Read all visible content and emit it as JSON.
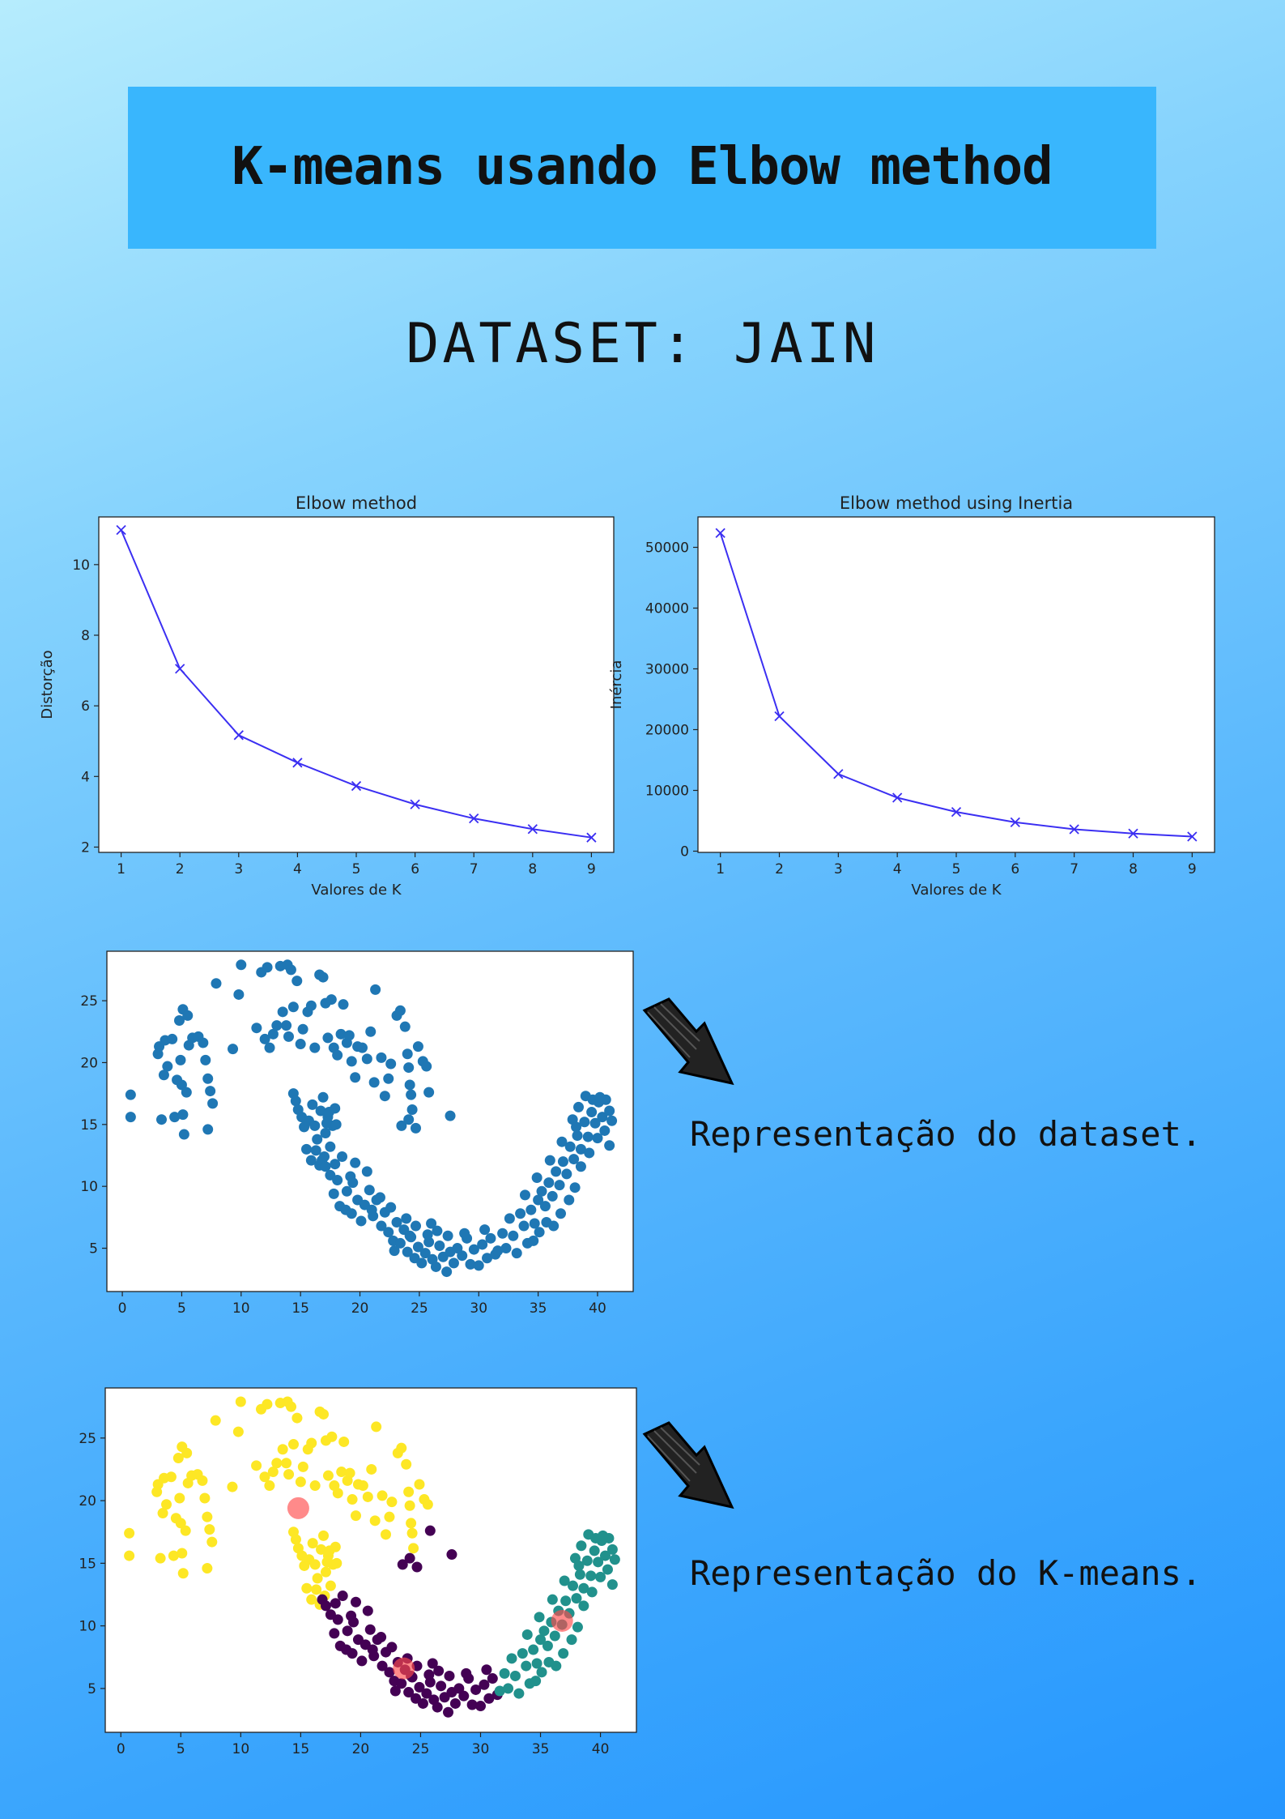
{
  "header": {
    "title": "K-means usando Elbow method",
    "subtitle": "DATASET: JAIN"
  },
  "captions": {
    "dataset": "Representação do dataset.",
    "kmeans": "Representação do K-means."
  },
  "colors": {
    "line": "#3b2ff2",
    "dataset_points": "#1f77b4",
    "cluster_0": "#440154",
    "cluster_1": "#21918c",
    "cluster_2": "#fde725",
    "centroid": "#ff4b4b"
  },
  "chart_data": [
    {
      "type": "line",
      "title": "Elbow method",
      "xlabel": "Valores de K",
      "ylabel": "Distorção",
      "x": [
        1,
        2,
        3,
        4,
        5,
        6,
        7,
        8,
        9
      ],
      "values": [
        10.98,
        7.05,
        5.17,
        4.39,
        3.73,
        3.21,
        2.81,
        2.51,
        2.27
      ],
      "xlim": [
        0.62,
        9.38
      ],
      "ylim": [
        1.85,
        11.35
      ],
      "xticks": [
        1,
        2,
        3,
        4,
        5,
        6,
        7,
        8,
        9
      ],
      "yticks": [
        2,
        4,
        6,
        8,
        10
      ],
      "marker": "x",
      "grid": false
    },
    {
      "type": "line",
      "title": "Elbow method using Inertia",
      "xlabel": "Valores de K",
      "ylabel": "Inércia",
      "x": [
        1,
        2,
        3,
        4,
        5,
        6,
        7,
        8,
        9
      ],
      "values": [
        52350,
        22200,
        12700,
        8800,
        6450,
        4750,
        3600,
        2900,
        2400
      ],
      "xlim": [
        0.62,
        9.38
      ],
      "ylim": [
        -200,
        55000
      ],
      "xticks": [
        1,
        2,
        3,
        4,
        5,
        6,
        7,
        8,
        9
      ],
      "yticks": [
        0,
        10000,
        20000,
        30000,
        40000,
        50000
      ],
      "marker": "x",
      "grid": false
    },
    {
      "type": "scatter",
      "title": "",
      "xlabel": "",
      "ylabel": "",
      "xlim": [
        -1.3,
        43
      ],
      "ylim": [
        1.5,
        29
      ],
      "xticks": [
        0,
        5,
        10,
        15,
        20,
        25,
        30,
        35,
        40
      ],
      "yticks": [
        5,
        10,
        15,
        20,
        25
      ],
      "point_groups": [
        {
          "cluster": 2,
          "points": [
            [
              0.7,
              17.4
            ],
            [
              0.7,
              15.6
            ],
            [
              3.1,
              21.3
            ],
            [
              3.6,
              21.8
            ],
            [
              3.0,
              20.7
            ],
            [
              4.2,
              21.9
            ],
            [
              3.8,
              19.7
            ],
            [
              4.9,
              20.2
            ],
            [
              3.5,
              19.0
            ],
            [
              4.6,
              18.6
            ],
            [
              5.0,
              18.2
            ],
            [
              5.4,
              17.6
            ],
            [
              4.4,
              15.6
            ],
            [
              5.1,
              15.8
            ],
            [
              3.3,
              15.4
            ],
            [
              5.2,
              14.2
            ],
            [
              4.8,
              23.4
            ],
            [
              5.1,
              24.3
            ],
            [
              5.5,
              23.8
            ],
            [
              5.9,
              22.0
            ],
            [
              6.4,
              22.1
            ],
            [
              5.6,
              21.4
            ],
            [
              6.8,
              21.6
            ],
            [
              7.0,
              20.2
            ],
            [
              7.2,
              18.7
            ],
            [
              7.4,
              17.7
            ],
            [
              7.6,
              16.7
            ],
            [
              7.2,
              14.6
            ],
            [
              7.9,
              26.4
            ],
            [
              9.3,
              21.1
            ],
            [
              9.8,
              25.5
            ],
            [
              10.0,
              27.9
            ],
            [
              11.3,
              22.8
            ],
            [
              11.7,
              27.3
            ],
            [
              12.2,
              27.7
            ],
            [
              12.0,
              21.9
            ],
            [
              12.4,
              21.2
            ],
            [
              12.7,
              22.3
            ],
            [
              13.0,
              23.0
            ],
            [
              13.3,
              27.8
            ],
            [
              13.9,
              27.9
            ],
            [
              13.5,
              24.1
            ],
            [
              13.8,
              23.0
            ],
            [
              14.0,
              22.1
            ],
            [
              14.4,
              24.5
            ],
            [
              14.2,
              27.5
            ],
            [
              14.7,
              26.6
            ],
            [
              15.0,
              21.5
            ],
            [
              15.2,
              22.7
            ],
            [
              15.6,
              24.1
            ],
            [
              15.9,
              24.6
            ],
            [
              16.2,
              21.2
            ],
            [
              16.6,
              27.1
            ],
            [
              16.9,
              26.9
            ],
            [
              17.1,
              24.8
            ],
            [
              17.3,
              22.0
            ],
            [
              17.6,
              25.1
            ],
            [
              17.8,
              21.2
            ],
            [
              18.1,
              20.6
            ],
            [
              18.4,
              22.3
            ],
            [
              18.6,
              24.7
            ],
            [
              18.9,
              21.6
            ],
            [
              19.1,
              22.2
            ],
            [
              19.3,
              20.1
            ],
            [
              19.6,
              18.8
            ],
            [
              19.8,
              21.3
            ],
            [
              20.2,
              21.2
            ],
            [
              20.6,
              20.3
            ],
            [
              20.9,
              22.5
            ],
            [
              21.2,
              18.4
            ],
            [
              21.3,
              25.9
            ],
            [
              21.8,
              20.4
            ],
            [
              22.1,
              17.3
            ],
            [
              22.4,
              18.7
            ],
            [
              22.6,
              19.9
            ],
            [
              23.1,
              23.8
            ],
            [
              23.4,
              24.2
            ],
            [
              23.8,
              22.9
            ],
            [
              24.0,
              20.7
            ],
            [
              24.1,
              19.6
            ],
            [
              24.2,
              18.2
            ],
            [
              24.3,
              17.4
            ],
            [
              24.4,
              16.2
            ],
            [
              24.9,
              21.3
            ],
            [
              25.3,
              20.1
            ],
            [
              25.6,
              19.7
            ],
            [
              14.4,
              17.5
            ],
            [
              14.6,
              16.9
            ],
            [
              14.8,
              16.2
            ],
            [
              15.1,
              15.6
            ],
            [
              15.3,
              14.8
            ],
            [
              15.7,
              15.3
            ],
            [
              16.0,
              16.6
            ],
            [
              16.2,
              14.9
            ],
            [
              16.4,
              13.8
            ],
            [
              16.7,
              16.1
            ],
            [
              16.9,
              17.2
            ],
            [
              17.1,
              14.3
            ],
            [
              17.3,
              15.6
            ],
            [
              17.5,
              13.2
            ],
            [
              17.7,
              14.9
            ],
            [
              17.9,
              16.3
            ],
            [
              15.5,
              13.0
            ],
            [
              15.9,
              12.1
            ],
            [
              16.3,
              12.9
            ],
            [
              16.6,
              11.7
            ],
            [
              17.0,
              12.4
            ],
            [
              17.2,
              15.1
            ],
            [
              18.0,
              15.0
            ],
            [
              17.4,
              16.0
            ]
          ]
        },
        {
          "cluster": 0,
          "points": [
            [
              16.8,
              12.1
            ],
            [
              17.1,
              11.6
            ],
            [
              17.5,
              10.9
            ],
            [
              17.9,
              11.8
            ],
            [
              18.1,
              10.5
            ],
            [
              18.5,
              12.4
            ],
            [
              18.9,
              9.6
            ],
            [
              19.2,
              10.8
            ],
            [
              19.6,
              11.9
            ],
            [
              17.8,
              9.4
            ],
            [
              18.3,
              8.4
            ],
            [
              18.8,
              8.1
            ],
            [
              19.3,
              7.8
            ],
            [
              19.8,
              8.9
            ],
            [
              20.1,
              7.2
            ],
            [
              20.4,
              8.5
            ],
            [
              20.8,
              9.7
            ],
            [
              21.1,
              7.6
            ],
            [
              21.4,
              8.9
            ],
            [
              21.8,
              6.8
            ],
            [
              22.1,
              7.9
            ],
            [
              22.4,
              6.3
            ],
            [
              22.8,
              5.6
            ],
            [
              23.1,
              7.1
            ],
            [
              23.4,
              5.4
            ],
            [
              23.7,
              6.5
            ],
            [
              24.0,
              4.7
            ],
            [
              24.3,
              5.9
            ],
            [
              24.6,
              4.2
            ],
            [
              24.9,
              5.1
            ],
            [
              25.2,
              3.8
            ],
            [
              25.5,
              4.6
            ],
            [
              25.8,
              5.5
            ],
            [
              26.1,
              4.1
            ],
            [
              26.4,
              3.5
            ],
            [
              26.7,
              5.2
            ],
            [
              27.0,
              4.3
            ],
            [
              27.3,
              3.1
            ],
            [
              27.6,
              4.7
            ],
            [
              27.9,
              3.8
            ],
            [
              28.2,
              5.0
            ],
            [
              28.6,
              4.4
            ],
            [
              29.0,
              5.8
            ],
            [
              29.3,
              3.7
            ],
            [
              29.6,
              4.9
            ],
            [
              30.0,
              3.6
            ],
            [
              30.3,
              5.3
            ],
            [
              30.7,
              4.2
            ],
            [
              31.0,
              5.8
            ],
            [
              31.4,
              4.5
            ],
            [
              19.4,
              10.3
            ],
            [
              20.6,
              11.2
            ],
            [
              21.7,
              9.1
            ],
            [
              22.6,
              8.3
            ],
            [
              23.9,
              7.4
            ],
            [
              24.7,
              6.8
            ],
            [
              25.7,
              6.1
            ],
            [
              26.5,
              6.4
            ],
            [
              28.8,
              6.2
            ],
            [
              30.5,
              6.5
            ],
            [
              23.5,
              14.9
            ],
            [
              24.1,
              15.4
            ],
            [
              24.7,
              14.7
            ],
            [
              25.8,
              17.6
            ],
            [
              27.6,
              15.7
            ],
            [
              21.0,
              8.1
            ],
            [
              22.9,
              4.8
            ],
            [
              24.2,
              6.0
            ],
            [
              26.0,
              7.0
            ],
            [
              27.4,
              6.0
            ]
          ]
        },
        {
          "cluster": 1,
          "points": [
            [
              31.6,
              4.8
            ],
            [
              32.0,
              6.2
            ],
            [
              32.3,
              5.0
            ],
            [
              32.6,
              7.4
            ],
            [
              32.9,
              6.0
            ],
            [
              33.2,
              4.6
            ],
            [
              33.5,
              7.8
            ],
            [
              33.8,
              6.8
            ],
            [
              34.1,
              5.4
            ],
            [
              34.4,
              8.1
            ],
            [
              34.7,
              7.0
            ],
            [
              35.0,
              8.9
            ],
            [
              35.3,
              9.6
            ],
            [
              35.6,
              8.4
            ],
            [
              35.9,
              10.3
            ],
            [
              36.2,
              9.2
            ],
            [
              36.5,
              11.2
            ],
            [
              36.8,
              10.1
            ],
            [
              37.1,
              12.0
            ],
            [
              37.4,
              11.0
            ],
            [
              37.7,
              13.2
            ],
            [
              38.0,
              12.2
            ],
            [
              38.3,
              14.1
            ],
            [
              38.6,
              13.0
            ],
            [
              38.9,
              15.2
            ],
            [
              39.2,
              14.0
            ],
            [
              39.5,
              16.0
            ],
            [
              39.8,
              15.1
            ],
            [
              40.1,
              16.8
            ],
            [
              40.4,
              15.6
            ],
            [
              40.7,
              17.0
            ],
            [
              41.0,
              16.1
            ],
            [
              41.2,
              15.3
            ],
            [
              39.0,
              17.3
            ],
            [
              39.6,
              17.0
            ],
            [
              40.2,
              17.2
            ],
            [
              38.4,
              16.4
            ],
            [
              37.9,
              15.4
            ],
            [
              38.6,
              11.6
            ],
            [
              38.1,
              9.9
            ],
            [
              37.6,
              8.9
            ],
            [
              36.9,
              7.8
            ],
            [
              36.3,
              6.8
            ],
            [
              35.7,
              7.1
            ],
            [
              35.1,
              6.3
            ],
            [
              34.6,
              5.6
            ],
            [
              33.9,
              9.3
            ],
            [
              34.9,
              10.7
            ],
            [
              36.0,
              12.1
            ],
            [
              37.0,
              13.6
            ],
            [
              38.2,
              14.8
            ],
            [
              39.3,
              12.7
            ],
            [
              40.0,
              13.9
            ],
            [
              40.6,
              14.5
            ],
            [
              41.0,
              13.3
            ]
          ]
        }
      ]
    },
    {
      "type": "scatter",
      "title": "",
      "xlabel": "",
      "ylabel": "",
      "xlim": [
        -1.3,
        43
      ],
      "ylim": [
        1.5,
        29
      ],
      "xticks": [
        0,
        5,
        10,
        15,
        20,
        25,
        30,
        35,
        40
      ],
      "yticks": [
        5,
        10,
        15,
        20,
        25
      ],
      "centroids": [
        [
          14.8,
          19.4
        ],
        [
          23.6,
          6.6
        ],
        [
          36.8,
          10.4
        ]
      ]
    }
  ]
}
